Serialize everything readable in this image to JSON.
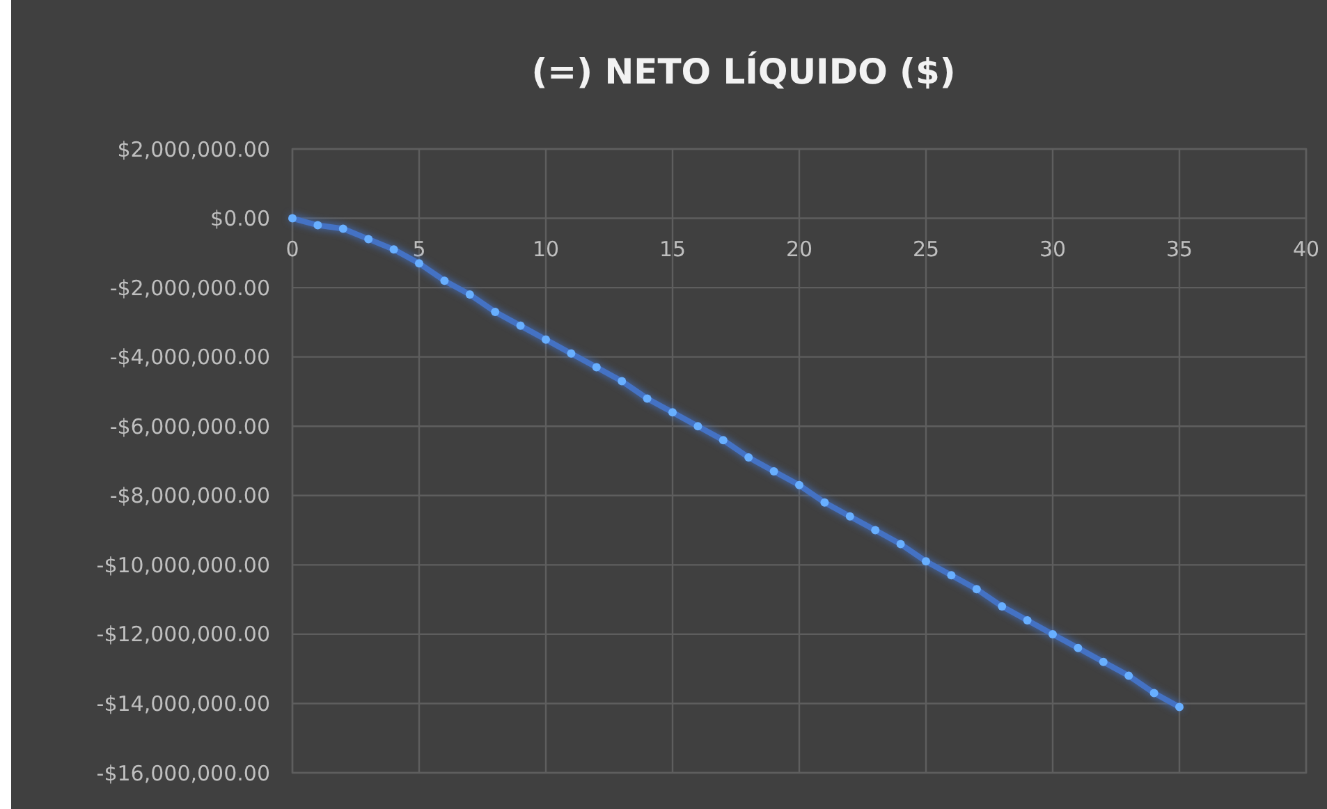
{
  "chart_data": {
    "type": "line",
    "title": "(=) NETO LÍQUIDO ($)",
    "x": [
      0,
      1,
      2,
      3,
      4,
      5,
      6,
      7,
      8,
      9,
      10,
      11,
      12,
      13,
      14,
      15,
      16,
      17,
      18,
      19,
      20,
      21,
      22,
      23,
      24,
      25,
      26,
      27,
      28,
      29,
      30,
      31,
      32,
      33,
      34,
      35
    ],
    "series": [
      {
        "color": "#4472c4",
        "values": [
          0,
          -200000,
          -300000,
          -600000,
          -900000,
          -1300000,
          -1800000,
          -2200000,
          -2700000,
          -3100000,
          -3500000,
          -3900000,
          -4300000,
          -4700000,
          -5200000,
          -5600000,
          -6000000,
          -6400000,
          -6900000,
          -7300000,
          -7700000,
          -8200000,
          -8600000,
          -9000000,
          -9400000,
          -9900000,
          -10300000,
          -10700000,
          -11200000,
          -11600000,
          -12000000,
          -12400000,
          -12800000,
          -13200000,
          -13700000,
          -14100000
        ]
      }
    ],
    "xlim": [
      0,
      40
    ],
    "xticks": [
      0,
      5,
      10,
      15,
      20,
      25,
      30,
      35,
      40
    ],
    "ylim": [
      -16000000,
      2000000
    ],
    "yticks": [
      {
        "value": 2000000,
        "label": "$2,000,000.00"
      },
      {
        "value": 0,
        "label": "$0.00"
      },
      {
        "value": -2000000,
        "label": "-$2,000,000.00"
      },
      {
        "value": -4000000,
        "label": "-$4,000,000.00"
      },
      {
        "value": -6000000,
        "label": "-$6,000,000.00"
      },
      {
        "value": -8000000,
        "label": "-$8,000,000.00"
      },
      {
        "value": -10000000,
        "label": "-$10,000,000.00"
      },
      {
        "value": -12000000,
        "label": "-$12,000,000.00"
      },
      {
        "value": -14000000,
        "label": "-$14,000,000.00"
      },
      {
        "value": -16000000,
        "label": "-$16,000,000.00"
      }
    ],
    "grid": true,
    "marker": "circle",
    "line_style": "solid"
  }
}
